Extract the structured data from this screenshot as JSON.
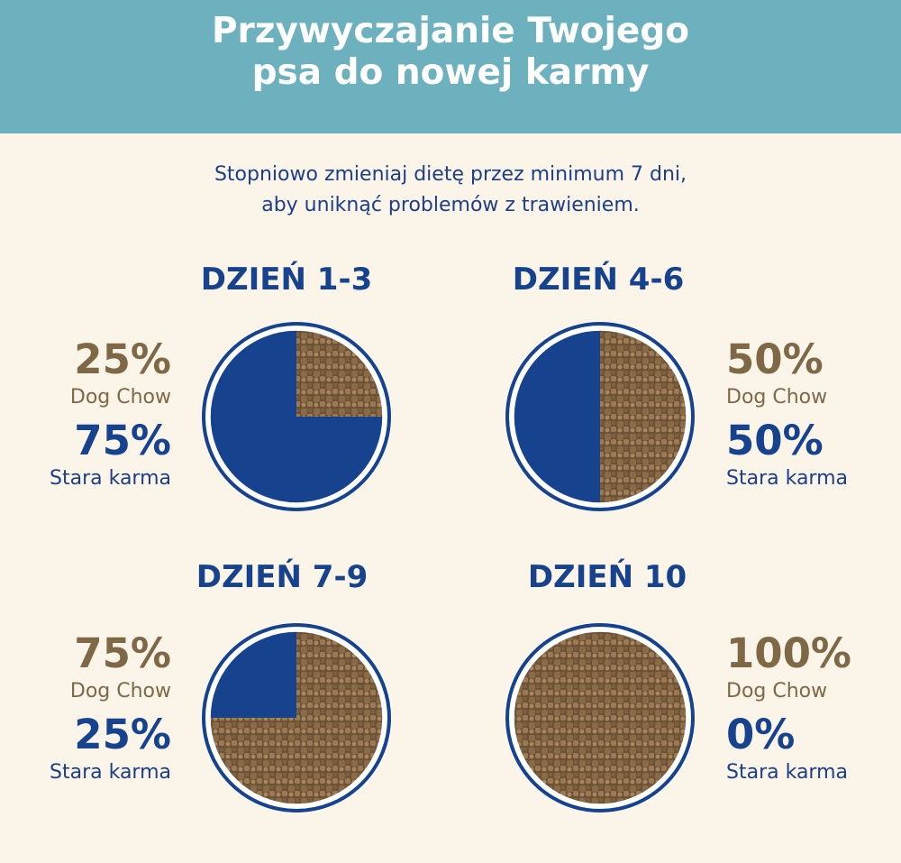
{
  "header": {
    "title_line1": "Przywyczajanie Twojego",
    "title_line2": "psa do nowej karmy"
  },
  "intro": {
    "line1": "Stopniowo zmieniaj dietę przez minimum 7 dni,",
    "line2": "aby uniknąć problemów z trawieniem."
  },
  "colors": {
    "header_bg": "#6cb1bd",
    "page_bg": "#fbf4e8",
    "navy": "#16428e",
    "brown": "#7e6846",
    "kibble": "#8a6b48"
  },
  "stages": [
    {
      "day": "DZIEŃ 1-3",
      "new_pct": "25%",
      "new_label": "Dog Chow",
      "old_pct": "75%",
      "old_label": "Stara karma",
      "new_fraction": 0.25
    },
    {
      "day": "DZIEŃ 4-6",
      "new_pct": "50%",
      "new_label": "Dog Chow",
      "old_pct": "50%",
      "old_label": "Stara karma",
      "new_fraction": 0.5
    },
    {
      "day": "DZIEŃ 7-9",
      "new_pct": "75%",
      "new_label": "Dog Chow",
      "old_pct": "25%",
      "old_label": "Stara karma",
      "new_fraction": 0.75
    },
    {
      "day": "DZIEŃ 10",
      "new_pct": "100%",
      "new_label": "Dog Chow",
      "old_pct": "0%",
      "old_label": "Stara karma",
      "new_fraction": 1.0
    }
  ]
}
